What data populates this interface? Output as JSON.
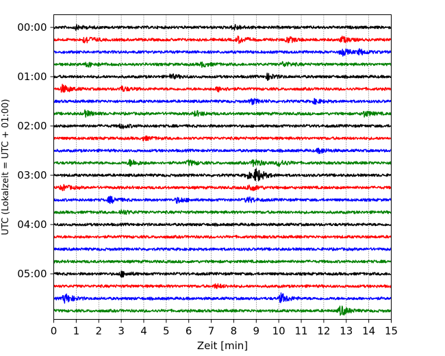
{
  "chart_data": {
    "type": "line",
    "subtype": "helicorder",
    "xlabel": "Zeit  [min]",
    "ylabel": "UTC (Lokalzeit = UTC + 01:00)",
    "xlim": [
      0,
      15
    ],
    "x_ticks": [
      "0",
      "1",
      "2",
      "3",
      "4",
      "5",
      "6",
      "7",
      "8",
      "9",
      "10",
      "11",
      "12",
      "13",
      "14",
      "15"
    ],
    "y_ticks": [
      "00:00",
      "01:00",
      "02:00",
      "03:00",
      "04:00",
      "05:00"
    ],
    "grid": "vertical-dotted",
    "trace_colors": [
      "#000000",
      "#ff0000",
      "#0000ff",
      "#008000"
    ],
    "trace_count": 24,
    "trace_interval_minutes": 15,
    "first_trace_time": "00:00",
    "events": [
      {
        "trace": 0,
        "minute": 1.0,
        "amp": 1.2
      },
      {
        "trace": 0,
        "minute": 8.0,
        "amp": 1.6
      },
      {
        "trace": 1,
        "minute": 1.4,
        "amp": 2.4
      },
      {
        "trace": 1,
        "minute": 8.2,
        "amp": 2.0
      },
      {
        "trace": 1,
        "minute": 10.4,
        "amp": 1.8
      },
      {
        "trace": 1,
        "minute": 12.8,
        "amp": 1.8
      },
      {
        "trace": 2,
        "minute": 12.8,
        "amp": 2.2
      },
      {
        "trace": 2,
        "minute": 13.6,
        "amp": 1.6
      },
      {
        "trace": 3,
        "minute": 1.5,
        "amp": 1.4
      },
      {
        "trace": 3,
        "minute": 6.6,
        "amp": 1.4
      },
      {
        "trace": 3,
        "minute": 10.2,
        "amp": 1.6
      },
      {
        "trace": 4,
        "minute": 9.5,
        "amp": 1.8
      },
      {
        "trace": 4,
        "minute": 5.2,
        "amp": 1.4
      },
      {
        "trace": 5,
        "minute": 0.4,
        "amp": 2.6
      },
      {
        "trace": 5,
        "minute": 3.0,
        "amp": 1.6
      },
      {
        "trace": 5,
        "minute": 7.3,
        "amp": 1.4
      },
      {
        "trace": 6,
        "minute": 8.8,
        "amp": 1.6
      },
      {
        "trace": 6,
        "minute": 11.6,
        "amp": 1.3
      },
      {
        "trace": 7,
        "minute": 1.4,
        "amp": 1.8
      },
      {
        "trace": 7,
        "minute": 6.3,
        "amp": 1.6
      },
      {
        "trace": 7,
        "minute": 13.8,
        "amp": 1.8
      },
      {
        "trace": 8,
        "minute": 3.0,
        "amp": 1.3
      },
      {
        "trace": 9,
        "minute": 4.0,
        "amp": 1.2
      },
      {
        "trace": 10,
        "minute": 11.8,
        "amp": 1.6
      },
      {
        "trace": 11,
        "minute": 3.4,
        "amp": 2.0
      },
      {
        "trace": 11,
        "minute": 6.0,
        "amp": 1.6
      },
      {
        "trace": 11,
        "minute": 8.9,
        "amp": 2.4
      },
      {
        "trace": 11,
        "minute": 10.0,
        "amp": 2.0
      },
      {
        "trace": 12,
        "minute": 9.0,
        "amp": 4.0
      },
      {
        "trace": 12,
        "minute": 8.6,
        "amp": 1.8
      },
      {
        "trace": 13,
        "minute": 8.7,
        "amp": 2.4
      },
      {
        "trace": 13,
        "minute": 0.4,
        "amp": 1.6
      },
      {
        "trace": 14,
        "minute": 2.5,
        "amp": 2.0
      },
      {
        "trace": 14,
        "minute": 5.5,
        "amp": 1.8
      },
      {
        "trace": 14,
        "minute": 8.6,
        "amp": 1.8
      },
      {
        "trace": 15,
        "minute": 3.0,
        "amp": 1.4
      },
      {
        "trace": 20,
        "minute": 3.0,
        "amp": 1.6
      },
      {
        "trace": 21,
        "minute": 7.2,
        "amp": 1.2
      },
      {
        "trace": 22,
        "minute": 0.5,
        "amp": 3.0
      },
      {
        "trace": 22,
        "minute": 10.1,
        "amp": 3.0
      },
      {
        "trace": 23,
        "minute": 12.75,
        "amp": 3.2
      }
    ]
  }
}
